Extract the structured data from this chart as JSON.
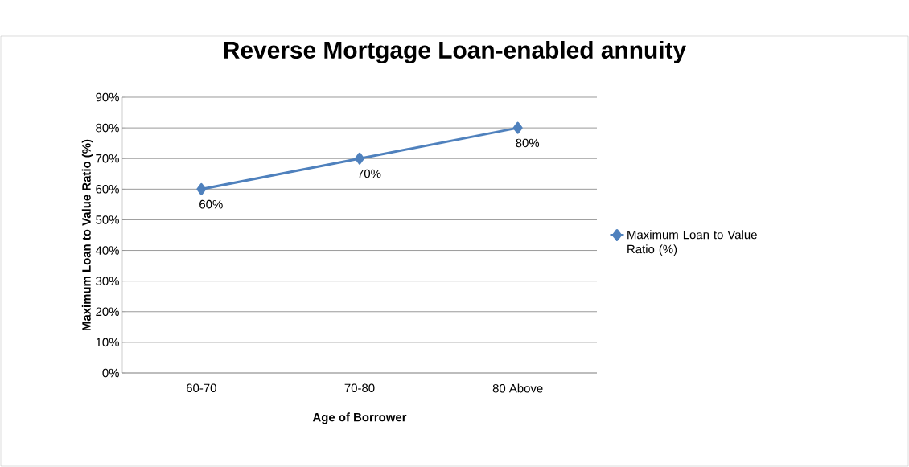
{
  "chart_data": {
    "type": "line",
    "title": "Reverse Mortgage Loan-enabled annuity",
    "xlabel": "Age of Borrower",
    "ylabel": "Maximum Loan to Value Ratio (%)",
    "categories": [
      "60-70",
      "70-80",
      "80 Above"
    ],
    "series": [
      {
        "name": "Maximum Loan to Value Ratio (%)",
        "color": "#4f81bd",
        "values": [
          60,
          70,
          80
        ],
        "value_labels": [
          "60%",
          "70%",
          "80%"
        ]
      }
    ],
    "ylim": [
      0,
      90
    ],
    "yticks": [
      {
        "value": 0,
        "label": "0%"
      },
      {
        "value": 10,
        "label": "10%"
      },
      {
        "value": 20,
        "label": "20%"
      },
      {
        "value": 30,
        "label": "30%"
      },
      {
        "value": 40,
        "label": "40%"
      },
      {
        "value": 50,
        "label": "50%"
      },
      {
        "value": 60,
        "label": "60%"
      },
      {
        "value": 70,
        "label": "70%"
      },
      {
        "value": 80,
        "label": "80%"
      },
      {
        "value": 90,
        "label": "90%"
      }
    ],
    "grid": "y",
    "legend": "right",
    "marker": "diamond",
    "line_style": "solid"
  }
}
